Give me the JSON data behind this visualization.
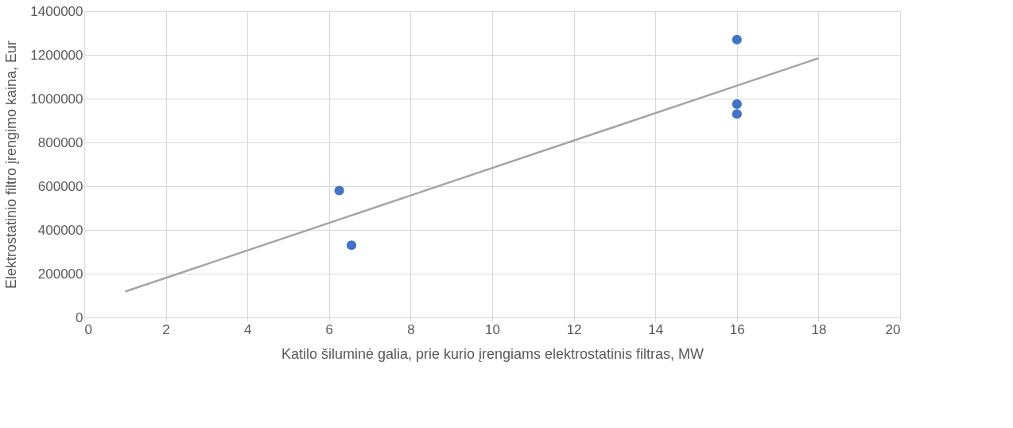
{
  "chart_data": {
    "type": "scatter",
    "xlabel": "Katilo šiluminė galia, prie kurio įrengiams elektrostatinis filtras, MW",
    "ylabel": "Elektrostatinio filtro įrengimo kaina, Eur",
    "series": [
      {
        "color": "#4472c4",
        "marker": "circle",
        "x": [
          6.25,
          6.55,
          16,
          16,
          16
        ],
        "values": [
          580000,
          330000,
          1270000,
          975000,
          930000
        ]
      },
      {
        "type": "line",
        "color": "#a5a5a5",
        "marker": "none",
        "x": [
          1,
          18
        ],
        "values": [
          118000,
          1185000
        ]
      }
    ],
    "xlim": [
      0,
      20
    ],
    "xticks": [
      0,
      2,
      4,
      6,
      8,
      10,
      12,
      14,
      16,
      18,
      20
    ],
    "ylim": [
      0,
      1400000
    ],
    "yticks": [
      0,
      200000,
      400000,
      600000,
      800000,
      1000000,
      1200000,
      1400000
    ],
    "grid": true
  }
}
